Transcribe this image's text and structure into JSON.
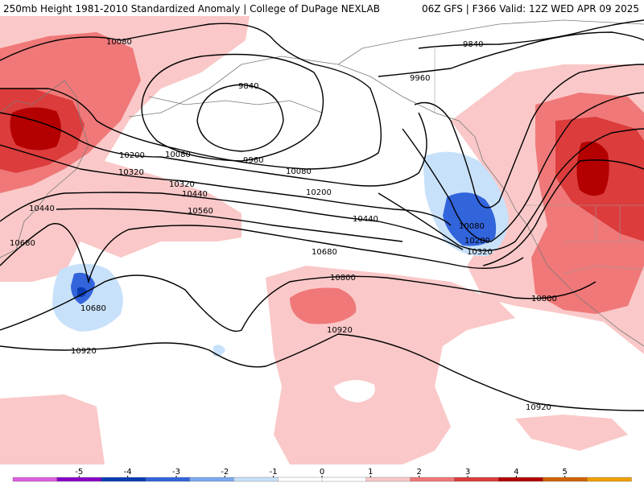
{
  "header": {
    "title_left": "250mb Height 1981-2010 Standardized Anomaly | College of DuPage NEXLAB",
    "title_right": "06Z GFS | F366 Valid: 12Z WED APR 09 2025"
  },
  "contour_labels": [
    "10080",
    "9840",
    "9960",
    "10080",
    "10200",
    "10320",
    "10440",
    "10560",
    "10680",
    "10800",
    "10920",
    "9840",
    "9960",
    "10080",
    "10200",
    "10320",
    "10440",
    "10680",
    "10800",
    "10920",
    "10920",
    "10680",
    "10440",
    "10320",
    "10200",
    "10080"
  ],
  "colorbar": {
    "ticks": [
      "-5",
      "-4",
      "-3",
      "-2",
      "-1",
      "0",
      "1",
      "2",
      "3",
      "4",
      "5"
    ],
    "colors": [
      "#e060e0",
      "#8a00c8",
      "#0a3cb4",
      "#3264dc",
      "#7aaaf0",
      "#c8e1fa",
      "#ffffff",
      "#ffffff",
      "#fac8c8",
      "#f07878",
      "#dc3c3c",
      "#b40000",
      "#d26400",
      "#f0a000"
    ]
  }
}
